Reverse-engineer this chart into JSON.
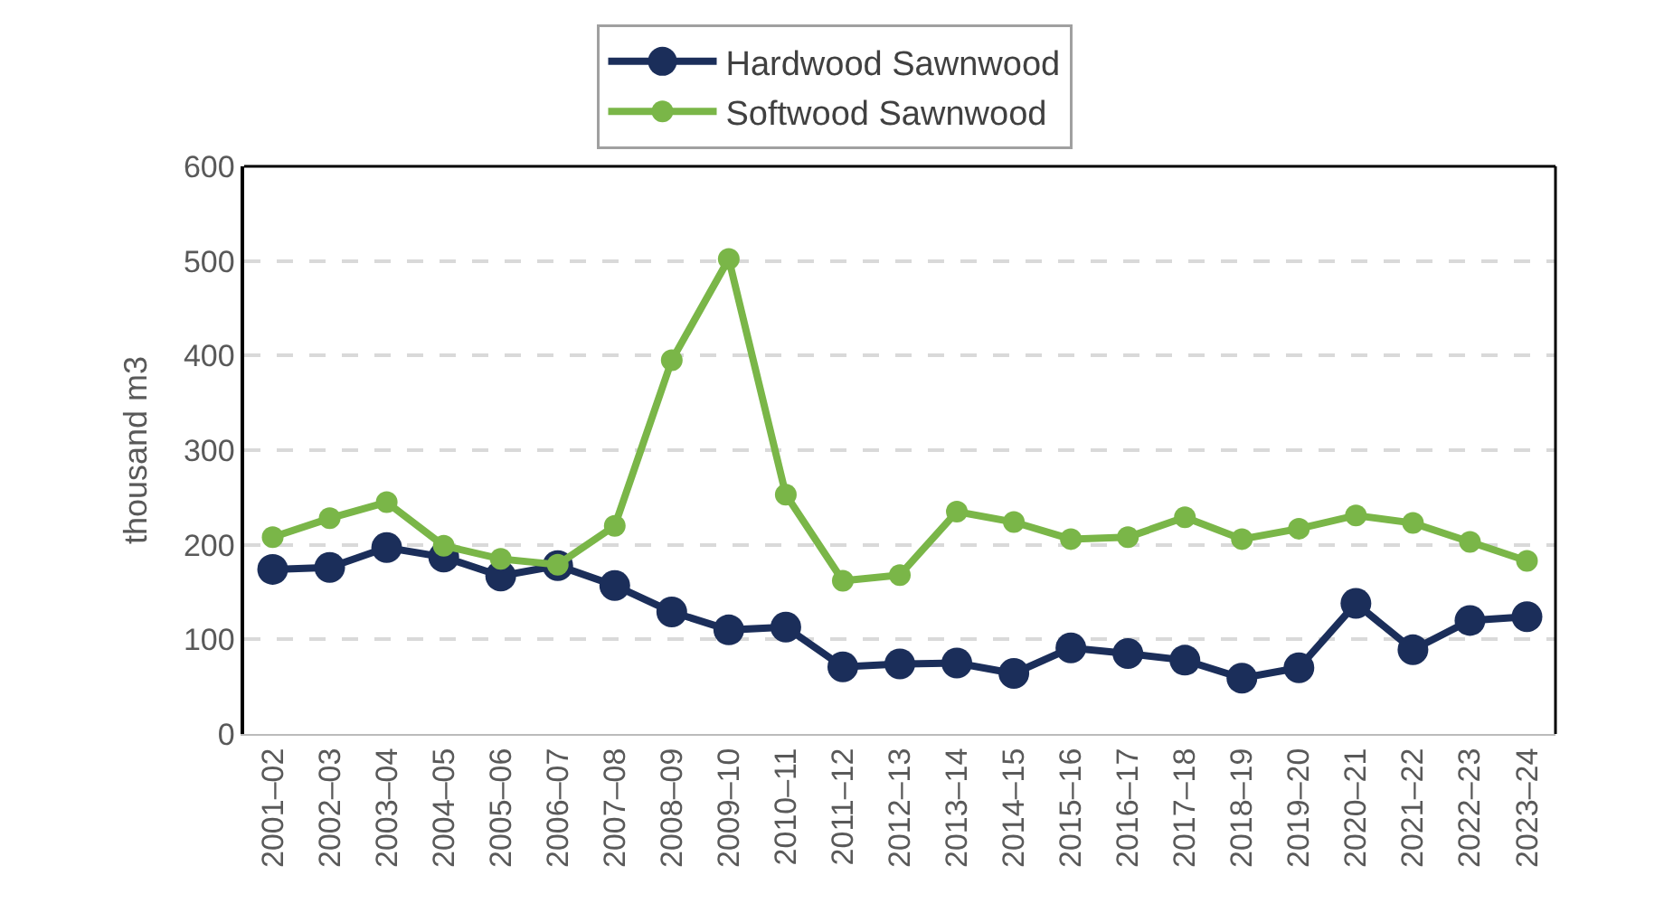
{
  "chart_data": {
    "type": "line",
    "ylabel": "thousand m3",
    "categories": [
      "2001–02",
      "2002–03",
      "2003–04",
      "2004–05",
      "2005–06",
      "2006–07",
      "2007–08",
      "2008–09",
      "2009–10",
      "2010–11",
      "2011–12",
      "2012–13",
      "2013–14",
      "2014–15",
      "2015–16",
      "2016–17",
      "2017–18",
      "2018–19",
      "2019–20",
      "2020–21",
      "2021–22",
      "2022–23",
      "2023–24"
    ],
    "series": [
      {
        "name": "Hardwood Sawnwood",
        "color": "#1b2e5a",
        "values": [
          174,
          176,
          197,
          187,
          167,
          178,
          157,
          129,
          110,
          113,
          71,
          74,
          75,
          64,
          91,
          85,
          78,
          59,
          70,
          138,
          89,
          120,
          124
        ]
      },
      {
        "name": "Softwood Sawnwood",
        "color": "#7ab648",
        "values": [
          208,
          228,
          245,
          199,
          185,
          179,
          220,
          395,
          502,
          253,
          162,
          168,
          235,
          224,
          206,
          208,
          229,
          206,
          217,
          231,
          223,
          203,
          183
        ]
      }
    ],
    "ylim": [
      0,
      600
    ],
    "yticks": [
      0,
      100,
      200,
      300,
      400,
      500,
      600
    ],
    "grid": "y",
    "legend": "top",
    "marker": "circle",
    "line_style": "solid"
  }
}
